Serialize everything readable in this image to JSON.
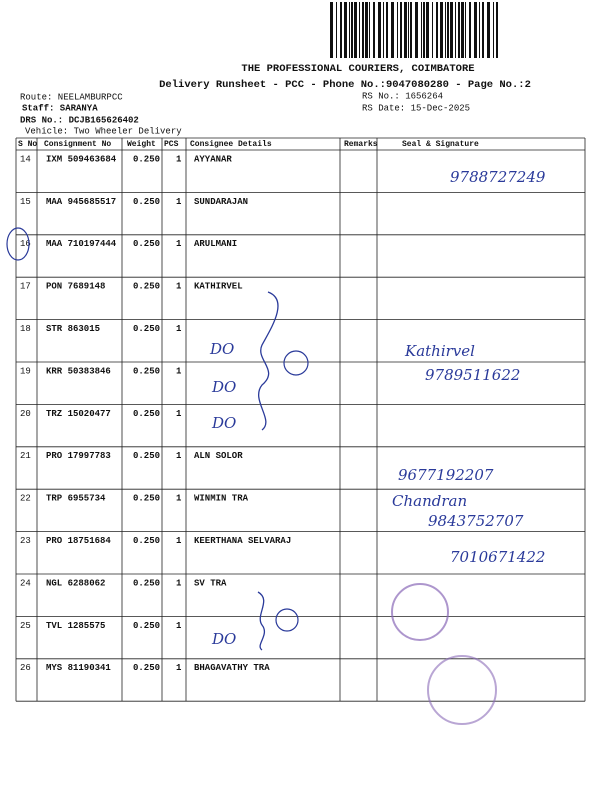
{
  "header": {
    "company": "THE PROFESSIONAL COURIERS, COIMBATORE",
    "title": "Delivery Runsheet - PCC - Phone No.:9047080280 - Page No.:2",
    "route": "Route: NEELAMBURPCC",
    "staff": "Staff: SARANYA",
    "drs": "DRS No.: DCJB165626402",
    "vehicle": "Vehicle: Two Wheeler Delivery",
    "rs_no": "RS No.: 1656264",
    "rs_date": "RS Date: 15-Dec-2025"
  },
  "table": {
    "columns": [
      "S No",
      "Consignment No",
      "Weight",
      "PCS",
      "Consignee Details",
      "Remarks",
      "Seal & Signature"
    ],
    "rows": [
      {
        "s_no": "14",
        "consignment": "IXM 509463684",
        "weight": "0.250",
        "pcs": "1",
        "consignee": "AYYANAR"
      },
      {
        "s_no": "15",
        "consignment": "MAA 945685517",
        "weight": "0.250",
        "pcs": "1",
        "consignee": "SUNDARAJAN"
      },
      {
        "s_no": "16",
        "consignment": "MAA 710197444",
        "weight": "0.250",
        "pcs": "1",
        "consignee": "ARULMANI"
      },
      {
        "s_no": "17",
        "consignment": "PON 7689148",
        "weight": "0.250",
        "pcs": "1",
        "consignee": "KATHIRVEL"
      },
      {
        "s_no": "18",
        "consignment": "STR 863015",
        "weight": "0.250",
        "pcs": "1"
      },
      {
        "s_no": "19",
        "consignment": "KRR 50383846",
        "weight": "0.250",
        "pcs": "1"
      },
      {
        "s_no": "20",
        "consignment": "TRZ 15020477",
        "weight": "0.250",
        "pcs": "1"
      },
      {
        "s_no": "21",
        "consignment": "PRO 17997783",
        "weight": "0.250",
        "pcs": "1",
        "consignee": "ALN SOLOR"
      },
      {
        "s_no": "22",
        "consignment": "TRP 6955734",
        "weight": "0.250",
        "pcs": "1",
        "consignee": "WINMIN TRA"
      },
      {
        "s_no": "23",
        "consignment": "PRO 18751684",
        "weight": "0.250",
        "pcs": "1",
        "consignee": "KEERTHANA SELVARAJ"
      },
      {
        "s_no": "24",
        "consignment": "NGL 6288062",
        "weight": "0.250",
        "pcs": "1",
        "consignee": "SV TRA"
      },
      {
        "s_no": "25",
        "consignment": "TVL 1285575",
        "weight": "0.250",
        "pcs": "1"
      },
      {
        "s_no": "26",
        "consignment": "MYS 81190341",
        "weight": "0.250",
        "pcs": "1",
        "consignee": "BHAGAVATHY TRA"
      }
    ]
  },
  "handwriting": [
    "9788727249",
    "DO",
    "DO",
    "DO",
    "Kathirvel",
    "9789511622",
    "9677192207",
    "Chandran",
    "9843752707",
    "7010671422",
    "DO"
  ]
}
